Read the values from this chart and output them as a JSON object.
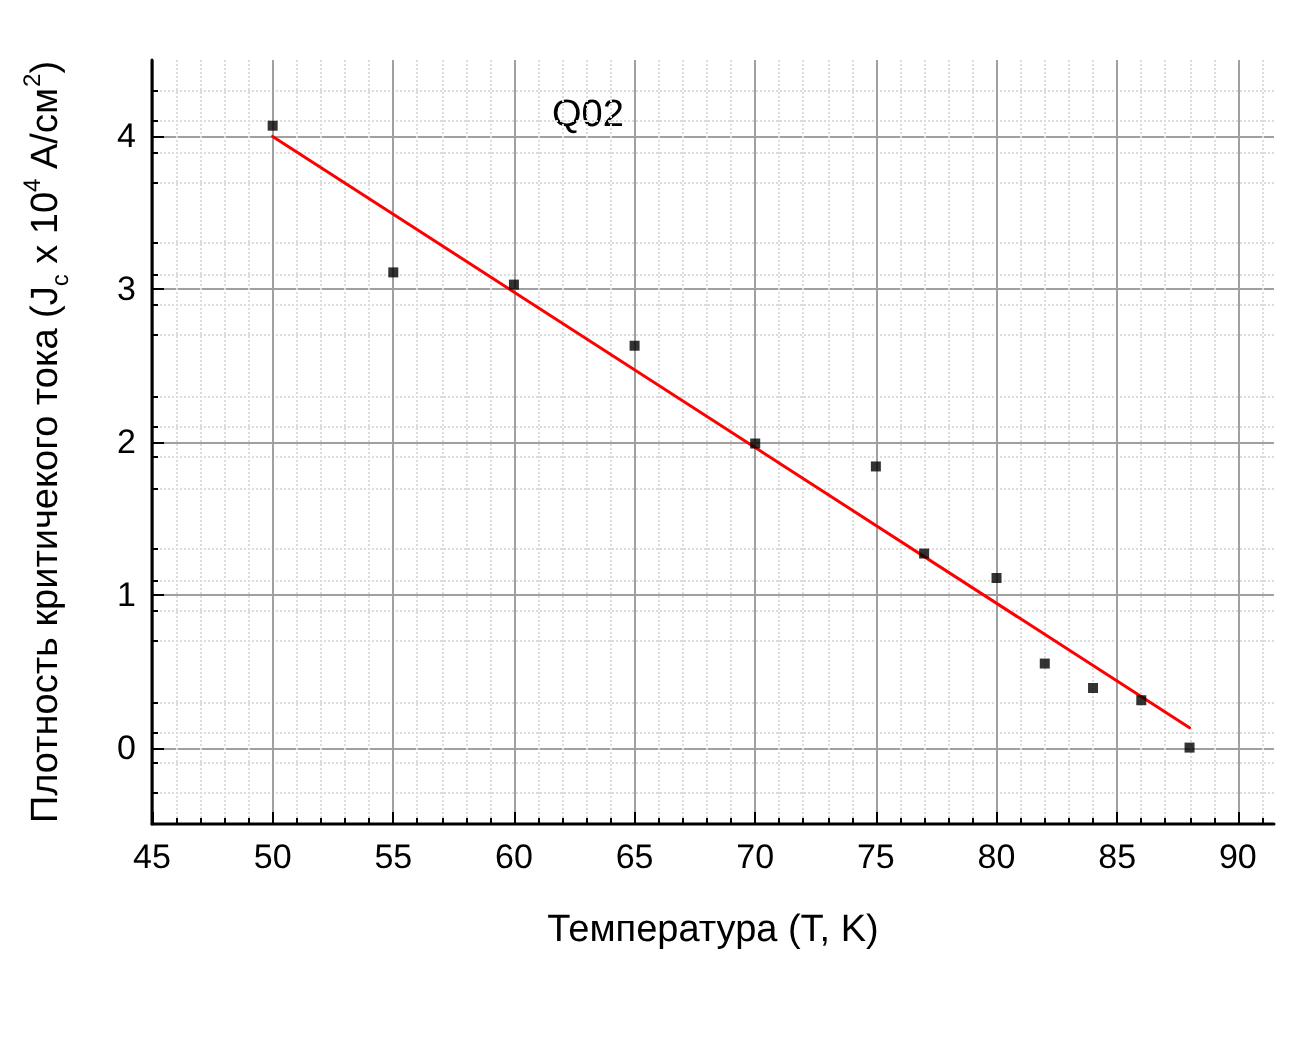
{
  "chart_data": {
    "type": "scatter",
    "xlabel": "Температура (T, K)",
    "ylabel": "Плотность критичекого тока (J$_{c}$ x 10$^{4}$ A/см$^{2}$)",
    "annotations": [
      "Q02"
    ],
    "x": [
      50,
      55,
      60,
      65,
      70,
      75,
      77,
      80,
      82,
      84,
      86,
      88
    ],
    "series": [
      {
        "color": "#000000",
        "marker": "square",
        "values": [
          4.07,
          3.11,
          3.03,
          2.63,
          1.99,
          1.84,
          1.27,
          1.11,
          0.55,
          0.39,
          0.31,
          0.0
        ]
      },
      {
        "type": "line",
        "color": "#ff0000",
        "marker": "none",
        "x": [
          50,
          88
        ],
        "values": [
          4.0,
          0.13
        ]
      }
    ],
    "xlim": [
      45,
      91.5
    ],
    "xticks": [
      45,
      50,
      55,
      60,
      65,
      70,
      75,
      80,
      85,
      90
    ],
    "ylim": [
      -0.5,
      4.5
    ],
    "yticks": [
      0,
      1,
      2,
      3,
      4
    ],
    "grid": true
  }
}
